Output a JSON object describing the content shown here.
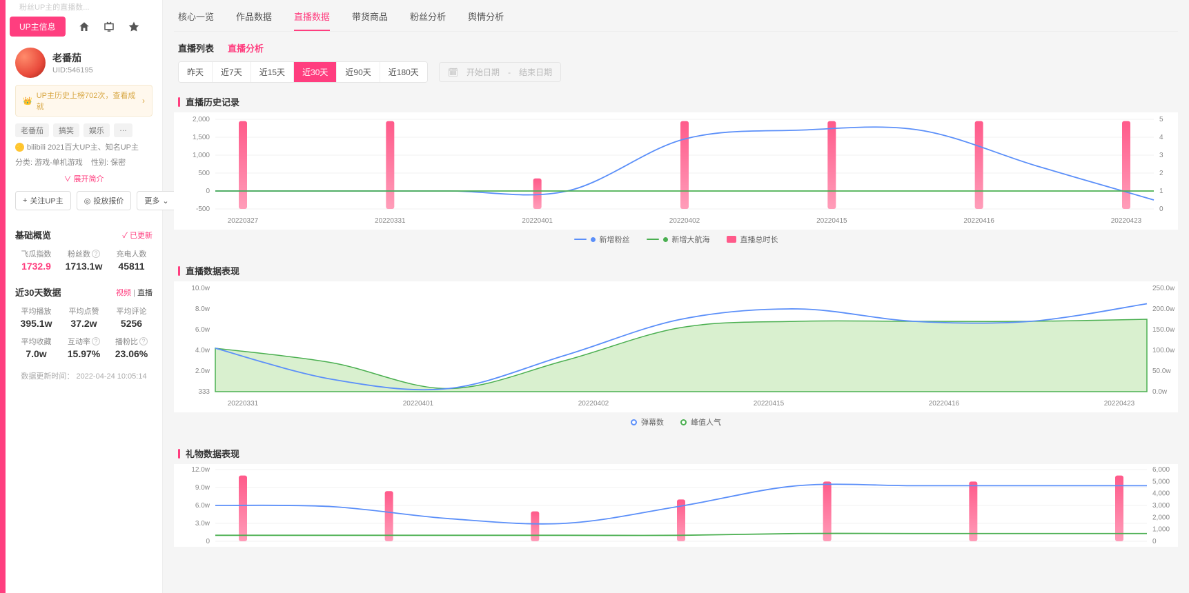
{
  "breadcrumb_top": "粉丝UP主的直播数...",
  "sidebar": {
    "tab_label": "UP主信息",
    "profile": {
      "name": "老番茄",
      "uid": "UID:546195"
    },
    "badge": "UP主历史上榜702次，查看成就",
    "tags": [
      "老番茄",
      "搞笑",
      "娱乐",
      "…"
    ],
    "cert": "bilibili 2021百大UP主、知名UP主",
    "category": "分类: 游戏-单机游戏",
    "gender": "性别: 保密",
    "expand": "∨ 展开简介",
    "buttons": {
      "follow": "关注UP主",
      "price": "投放报价",
      "more": "更多"
    },
    "overview_title": "基础概览",
    "overview_status": "✓ 已更新",
    "overview": [
      {
        "label": "飞瓜指数",
        "val": "1732.9",
        "pink": true
      },
      {
        "label": "粉丝数",
        "val": "1713.1w",
        "help": true
      },
      {
        "label": "充电人数",
        "val": "45811"
      }
    ],
    "near30_title": "近30天数据",
    "near30_tabs": {
      "video": "视频",
      "live": "直播"
    },
    "near30": [
      {
        "label": "平均播放",
        "val": "395.1w"
      },
      {
        "label": "平均点赞",
        "val": "37.2w"
      },
      {
        "label": "平均评论",
        "val": "5256"
      },
      {
        "label": "平均收藏",
        "val": "7.0w"
      },
      {
        "label": "互动率",
        "val": "15.97%",
        "help": true
      },
      {
        "label": "播粉比",
        "val": "23.06%",
        "help": true
      }
    ],
    "update_time": "数据更新时间：  2022-04-24 10:05:14"
  },
  "tabs": [
    "核心一览",
    "作品数据",
    "直播数据",
    "带货商品",
    "粉丝分析",
    "舆情分析"
  ],
  "tabs_active": 2,
  "subtabs": {
    "list": "直播列表",
    "analysis": "直播分析",
    "active": 1
  },
  "ranges": [
    "昨天",
    "近7天",
    "近15天",
    "近30天",
    "近90天",
    "近180天"
  ],
  "ranges_active": 3,
  "date_picker": {
    "start": "开始日期",
    "sep": "-",
    "end": "结束日期"
  },
  "charts": {
    "c1": {
      "title": "直播历史记录",
      "x_labels": [
        "20220327",
        "20220331",
        "20220401",
        "20220402",
        "20220415",
        "20220416",
        "20220423"
      ],
      "y_left": [
        "2,000",
        "1,500",
        "1,000",
        "500",
        "0",
        "-500"
      ],
      "y_right": [
        "5",
        "4",
        "3",
        "2",
        "1",
        "0"
      ],
      "line_blue": [
        0,
        0,
        0,
        0,
        1450,
        1700,
        1700,
        700,
        -250
      ],
      "line_green": [
        0,
        0,
        0,
        0,
        0,
        0,
        0,
        0,
        0
      ],
      "bars": [
        4.9,
        4.9,
        1.7,
        4.9,
        4.9,
        4.9,
        4.9
      ],
      "legend": [
        "新增粉丝",
        "新增大航海",
        "直播总时长"
      ],
      "colors": {
        "blue": "#5b8ff9",
        "green": "#4aaf50",
        "bar": "#ff5a8a",
        "bar2": "#ff9db9"
      }
    },
    "c2": {
      "title": "直播数据表现",
      "x_labels": [
        "20220331",
        "20220401",
        "20220402",
        "20220415",
        "20220416",
        "20220423"
      ],
      "y_left": [
        "10.0w",
        "8.0w",
        "6.0w",
        "4.0w",
        "2.0w",
        "333"
      ],
      "y_right": [
        "250.0w",
        "200.0w",
        "150.0w",
        "100.0w",
        "50.0w",
        "0.0w"
      ],
      "line_blue": [
        4.2,
        1.2,
        0.3,
        3.5,
        7.0,
        8.0,
        6.8,
        6.8,
        8.5
      ],
      "area_green": [
        4.2,
        2.8,
        0.3,
        3.0,
        6.2,
        6.8,
        6.8,
        6.8,
        7.0
      ],
      "legend": [
        "弹幕数",
        "峰值人气"
      ],
      "colors": {
        "blue": "#5b8ff9",
        "green": "#4aaf50",
        "fill": "#b9e3a8"
      }
    },
    "c3": {
      "title": "礼物数据表现",
      "x_labels": [
        "",
        "",
        "",
        "",
        "",
        "",
        ""
      ],
      "y_left": [
        "12.0w",
        "9.0w",
        "6.0w",
        "3.0w",
        "0"
      ],
      "y_right": [
        "6,000",
        "5,000",
        "4,000",
        "3,000",
        "2,000",
        "1,000",
        "0"
      ],
      "line_blue": [
        6.0,
        5.8,
        3.8,
        3.0,
        5.9,
        9.3,
        9.3,
        9.3,
        9.3
      ],
      "line_green": [
        1.0,
        1.0,
        1.0,
        1.0,
        1.0,
        1.3,
        1.3,
        1.3,
        1.3
      ],
      "bars": [
        5.5,
        4.2,
        2.5,
        3.5,
        5.0,
        5.0,
        5.5
      ],
      "colors": {
        "blue": "#5b8ff9",
        "green": "#4aaf50",
        "bar": "#ff5a8a",
        "bar2": "#ff9db9"
      }
    }
  }
}
